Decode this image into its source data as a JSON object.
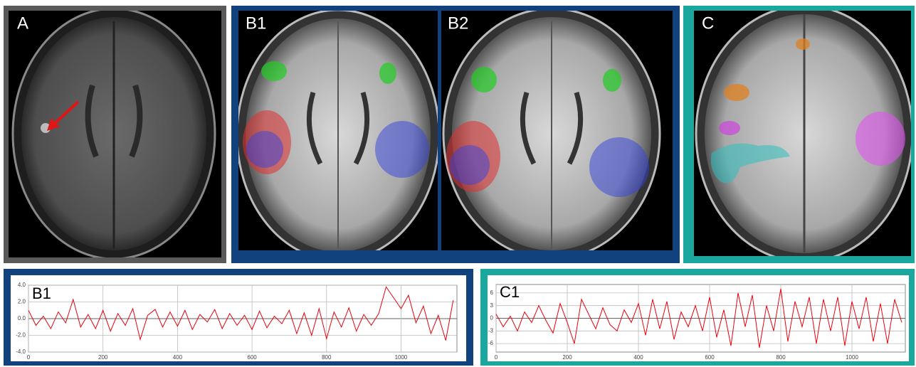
{
  "image_panels": [
    {
      "label": "A"
    },
    {
      "label": "B1"
    },
    {
      "label": "B2"
    },
    {
      "label": "C"
    }
  ],
  "chart_data": [
    {
      "type": "line",
      "panel_label": "B1",
      "x": [
        0,
        20,
        40,
        60,
        80,
        100,
        120,
        140,
        160,
        180,
        200,
        220,
        240,
        260,
        280,
        300,
        320,
        340,
        360,
        380,
        400,
        420,
        440,
        460,
        480,
        500,
        520,
        540,
        560,
        580,
        600,
        620,
        640,
        660,
        680,
        700,
        720,
        740,
        760,
        780,
        800,
        820,
        840,
        860,
        880,
        900,
        920,
        940,
        960,
        980,
        1000,
        1020,
        1040,
        1060,
        1080,
        1100,
        1120,
        1140
      ],
      "series": [
        {
          "color": "#e8000b",
          "values": [
            1.0,
            -0.8,
            0.3,
            -1.2,
            0.8,
            -0.5,
            2.3,
            -1.0,
            0.5,
            -1.2,
            1.0,
            -1.5,
            0.6,
            -0.8,
            1.2,
            -2.5,
            0.4,
            1.1,
            -1.0,
            0.8,
            -0.9,
            1.0,
            -1.3,
            0.5,
            -0.4,
            1.1,
            -1.2,
            0.6,
            -0.8,
            0.4,
            -1.3,
            0.9,
            -1.1,
            0.3,
            -0.6,
            1.0,
            -1.8,
            0.7,
            -2.0,
            1.2,
            -2.4,
            0.8,
            -1.0,
            1.3,
            -1.5,
            0.5,
            -0.8,
            0.6,
            3.8,
            2.5,
            1.2,
            2.8,
            -0.5,
            1.5,
            -1.8,
            0.4,
            -2.6,
            2.2
          ]
        }
      ],
      "xlim": [
        0,
        1150
      ],
      "xticks": [
        0,
        200,
        400,
        600,
        800,
        1000
      ],
      "ylim": [
        -4,
        4
      ],
      "yticks": [
        {
          "value": 4,
          "label": "4.0"
        },
        {
          "value": 2,
          "label": "2.0"
        },
        {
          "value": 0,
          "label": "0.0"
        },
        {
          "value": -2,
          "label": "-2.0"
        },
        {
          "value": -4,
          "label": "-4.0"
        }
      ],
      "grid": true
    },
    {
      "type": "line",
      "panel_label": "C1",
      "x": [
        0,
        20,
        40,
        60,
        80,
        100,
        120,
        140,
        160,
        180,
        200,
        220,
        240,
        260,
        280,
        300,
        320,
        340,
        360,
        380,
        400,
        420,
        440,
        460,
        480,
        500,
        520,
        540,
        560,
        580,
        600,
        620,
        640,
        660,
        680,
        700,
        720,
        740,
        760,
        780,
        800,
        820,
        840,
        860,
        880,
        900,
        920,
        940,
        960,
        980,
        1000,
        1020,
        1040,
        1060,
        1080,
        1100,
        1120,
        1140
      ],
      "series": [
        {
          "color": "#e8000b",
          "values": [
            1.0,
            -2.0,
            0.5,
            -3.0,
            1.5,
            -1.0,
            3.0,
            -0.5,
            -3.5,
            3.5,
            -1.0,
            -6.0,
            4.5,
            1.0,
            -2.5,
            2.5,
            -1.5,
            -3.0,
            2.0,
            -1.0,
            3.5,
            -4.0,
            4.5,
            -2.5,
            4.0,
            -5.0,
            1.5,
            -2.0,
            3.0,
            -3.0,
            5.0,
            -4.5,
            2.0,
            -6.5,
            6.0,
            -2.0,
            5.5,
            -7.0,
            3.0,
            -3.0,
            7.0,
            -5.5,
            4.0,
            -2.0,
            5.0,
            -6.0,
            4.5,
            -3.0,
            5.0,
            -6.5,
            4.0,
            -2.5,
            5.0,
            -5.5,
            3.5,
            -6.0,
            4.5,
            -1.0
          ]
        }
      ],
      "xlim": [
        0,
        1150
      ],
      "xticks": [
        0,
        200,
        400,
        600,
        800,
        1000
      ],
      "ylim": [
        -8,
        8
      ],
      "yticks": [
        6,
        3,
        0,
        -3,
        -6
      ],
      "grid": true
    }
  ]
}
